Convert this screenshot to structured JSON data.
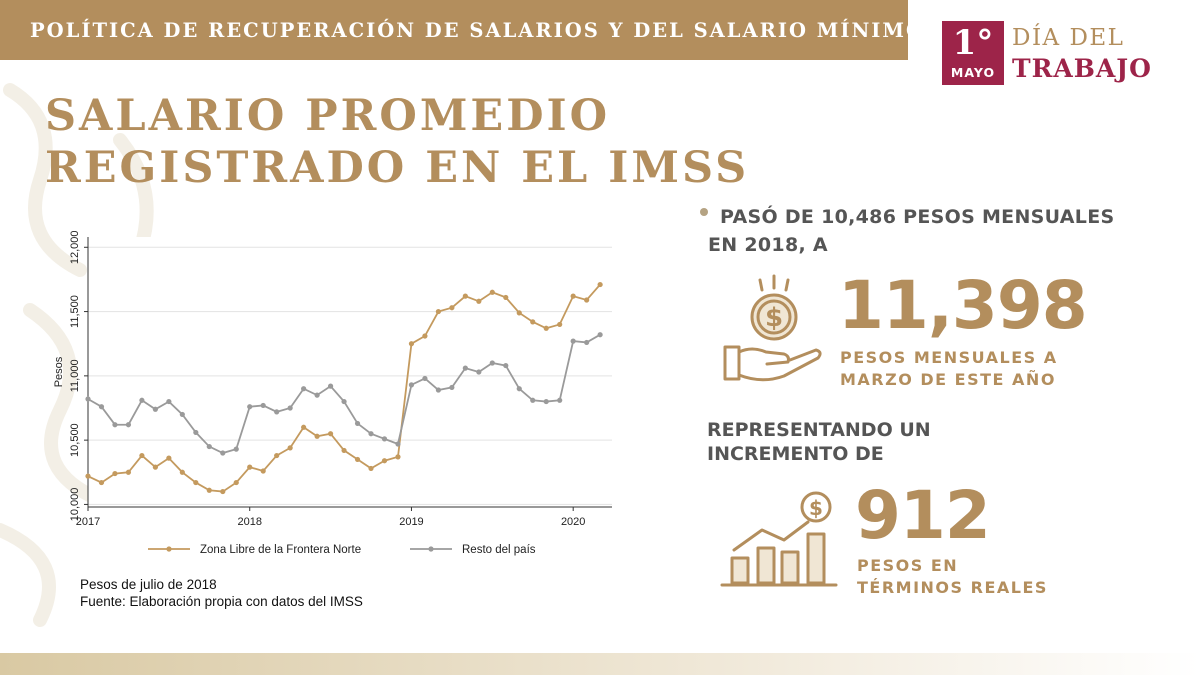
{
  "header": {
    "title": "POLÍTICA DE RECUPERACIÓN DE SALARIOS Y DEL SALARIO MÍNIMO"
  },
  "logo": {
    "number": "1°",
    "month": "MAYO",
    "line1": "DÍA DEL",
    "line2": "TRABAJO"
  },
  "title": {
    "line1": "SALARIO PROMEDIO",
    "line2": "REGISTRADO EN EL IMSS"
  },
  "colors": {
    "gold": "#b38e5d",
    "maroon": "#9d2449",
    "series_gold": "#c49a5e",
    "series_gray": "#9a9a9a",
    "text_gray": "#555555"
  },
  "chart_data": {
    "type": "line",
    "title": "",
    "xlabel": "",
    "ylabel": "Pesos",
    "x_start": 2017.0,
    "x_step": 0.08333,
    "xlim": [
      2017.0,
      2020.24
    ],
    "ylim": [
      9980,
      12080
    ],
    "yticks": [
      10000,
      10500,
      11000,
      11500,
      12000
    ],
    "ytick_labels": [
      "10,000",
      "10,500",
      "11,000",
      "11,500",
      "12,000"
    ],
    "xticks": [
      2017,
      2018,
      2019,
      2020
    ],
    "xtick_labels": [
      "2017",
      "2018",
      "2019",
      "2020"
    ],
    "grid": true,
    "legend_position": "bottom",
    "series": [
      {
        "name": "Zona Libre de la Frontera Norte",
        "color": "#c49a5e",
        "values": [
          10220,
          10170,
          10240,
          10250,
          10380,
          10290,
          10360,
          10250,
          10170,
          10110,
          10100,
          10170,
          10290,
          10260,
          10380,
          10440,
          10600,
          10530,
          10550,
          10420,
          10350,
          10280,
          10340,
          10370,
          11250,
          11310,
          11500,
          11530,
          11620,
          11580,
          11650,
          11610,
          11490,
          11420,
          11370,
          11400,
          11620,
          11590,
          11710
        ]
      },
      {
        "name": "Resto del país",
        "color": "#9a9a9a",
        "values": [
          10820,
          10760,
          10620,
          10620,
          10810,
          10740,
          10800,
          10700,
          10560,
          10450,
          10400,
          10430,
          10760,
          10770,
          10720,
          10750,
          10900,
          10850,
          10920,
          10800,
          10630,
          10550,
          10510,
          10470,
          10930,
          10980,
          10890,
          10910,
          11060,
          11030,
          11100,
          11080,
          10900,
          10810,
          10800,
          10810,
          11270,
          11260,
          11320
        ]
      }
    ]
  },
  "notes": {
    "line1": "Pesos de julio de 2018",
    "line2": "Fuente: Elaboración propia con datos del IMSS"
  },
  "stat1": {
    "line1": "PASÓ DE 10,486 PESOS MENSUALES",
    "line2": "EN 2018, A",
    "value": "11,398",
    "sub1": "PESOS MENSUALES A",
    "sub2": "MARZO DE ESTE AÑO",
    "icon": "money-hand-icon"
  },
  "stat2": {
    "line1": "REPRESENTANDO UN",
    "line2": "INCREMENTO DE",
    "value": "912",
    "sub1": "PESOS EN",
    "sub2": "TÉRMINOS REALES",
    "icon": "growth-bars-icon"
  }
}
